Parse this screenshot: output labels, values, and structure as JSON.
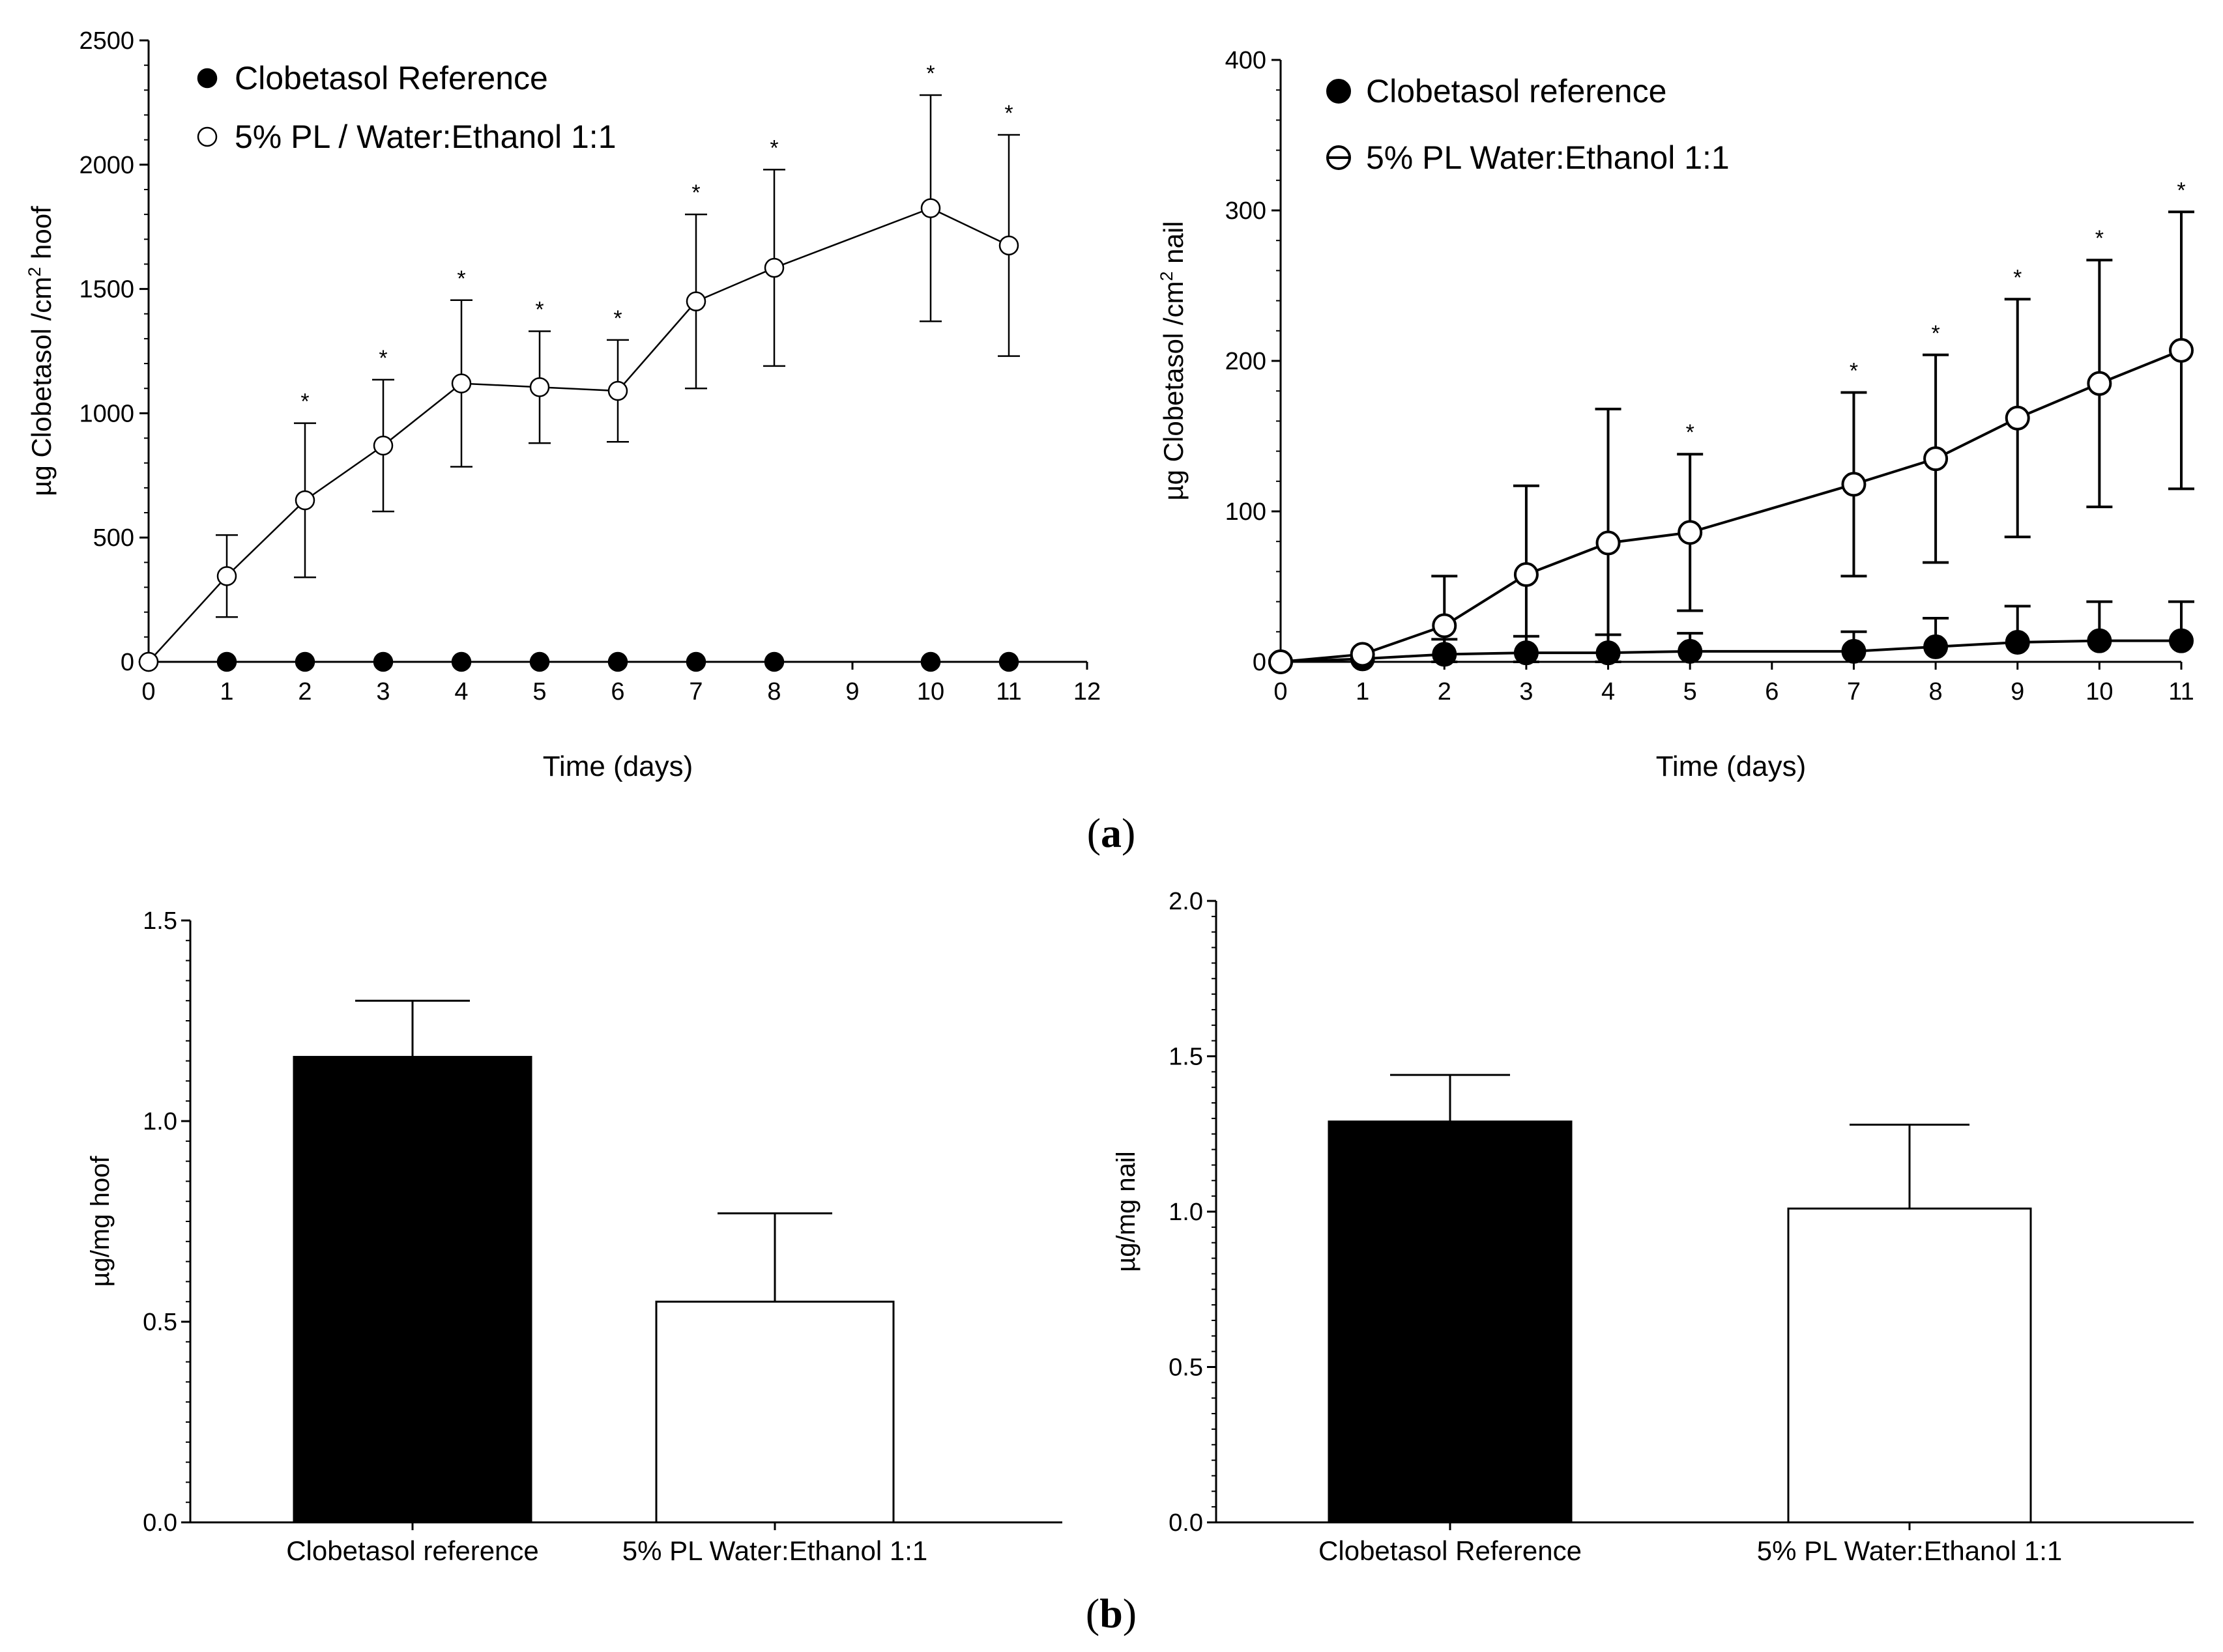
{
  "panels": {
    "a_label": "a",
    "b_label": "b"
  },
  "chart_data": [
    {
      "id": "a-left",
      "type": "line",
      "xlabel": "Time (days)",
      "ylabel": "µg Clobetasol /cm² hoof",
      "ylabel_main": "µg Clobetasol /cm",
      "ylabel_sup": "2",
      "ylabel_tail": " hoof",
      "xlim": [
        0,
        12
      ],
      "ylim": [
        0,
        2500
      ],
      "xticks": [
        0,
        1,
        2,
        3,
        4,
        5,
        6,
        7,
        8,
        9,
        10,
        11,
        12
      ],
      "yticks": [
        0,
        500,
        1000,
        1500,
        2000,
        2500
      ],
      "series": [
        {
          "name": "Clobetasol Reference",
          "marker": "filled",
          "x": [
            0,
            1,
            2,
            3,
            4,
            5,
            6,
            7,
            8,
            10,
            11
          ],
          "y": [
            0,
            0,
            0,
            0,
            0,
            0,
            0,
            0,
            0,
            0,
            0
          ],
          "err": [
            0,
            0,
            0,
            0,
            0,
            0,
            0,
            0,
            0,
            0,
            0
          ]
        },
        {
          "name": "5% PL / Water:Ethanol 1:1",
          "marker": "open",
          "x": [
            0,
            1,
            2,
            3,
            4,
            5,
            6,
            7,
            8,
            10,
            11
          ],
          "y": [
            0,
            345,
            650,
            870,
            1120,
            1105,
            1090,
            1450,
            1585,
            1825,
            1675
          ],
          "err": [
            0,
            165,
            310,
            265,
            335,
            225,
            205,
            350,
            395,
            455,
            445
          ]
        }
      ],
      "significance": {
        "symbol": "*",
        "x": [
          2,
          3,
          4,
          5,
          6,
          7,
          8,
          10,
          11
        ]
      }
    },
    {
      "id": "a-right",
      "type": "line",
      "xlabel": "Time (days)",
      "ylabel": "µg Clobetasol /cm² nail",
      "ylabel_main": "µg Clobetasol /cm",
      "ylabel_sup": "2",
      "ylabel_tail": " nail",
      "xlim": [
        0,
        11
      ],
      "ylim": [
        0,
        400
      ],
      "xticks": [
        0,
        1,
        2,
        3,
        4,
        5,
        6,
        7,
        8,
        9,
        10,
        11
      ],
      "yticks": [
        0,
        100,
        200,
        300,
        400
      ],
      "series": [
        {
          "name": "Clobetasol reference",
          "marker": "filled",
          "x": [
            0,
            1,
            2,
            3,
            4,
            5,
            7,
            8,
            9,
            10,
            11
          ],
          "y": [
            0,
            2,
            5,
            6,
            6,
            7,
            7,
            10,
            13,
            14,
            14
          ],
          "err": [
            0,
            0,
            10,
            11,
            12,
            12,
            13,
            19,
            24,
            26,
            26
          ]
        },
        {
          "name": "5% PL Water:Ethanol 1:1",
          "marker": "open",
          "x": [
            0,
            1,
            2,
            3,
            4,
            5,
            7,
            8,
            9,
            10,
            11
          ],
          "y": [
            0,
            5,
            24,
            58,
            79,
            86,
            118,
            135,
            162,
            185,
            207
          ],
          "err": [
            0,
            0,
            33,
            59,
            89,
            52,
            61,
            69,
            79,
            82,
            92
          ]
        }
      ],
      "significance": {
        "symbol": "*",
        "x": [
          5,
          7,
          8,
          9,
          10,
          11
        ]
      }
    },
    {
      "id": "b-left",
      "type": "bar",
      "ylabel": "µg/mg hoof",
      "ylim": [
        0,
        1.5
      ],
      "yticks": [
        "0.0",
        "0.5",
        "1.0",
        "1.5"
      ],
      "categories": [
        "Clobetasol reference",
        "5% PL Water:Ethanol 1:1"
      ],
      "values": [
        1.16,
        0.55
      ],
      "err": [
        0.14,
        0.22
      ],
      "fills": [
        "#000000",
        "#ffffff"
      ]
    },
    {
      "id": "b-right",
      "type": "bar",
      "ylabel": "µg/mg nail",
      "ylim": [
        0,
        2.0
      ],
      "yticks": [
        "0.0",
        "0.5",
        "1.0",
        "1.5",
        "2.0"
      ],
      "categories": [
        "Clobetasol Reference",
        "5% PL Water:Ethanol 1:1"
      ],
      "values": [
        1.29,
        1.01
      ],
      "err": [
        0.15,
        0.27
      ],
      "fills": [
        "#000000",
        "#ffffff"
      ]
    }
  ]
}
